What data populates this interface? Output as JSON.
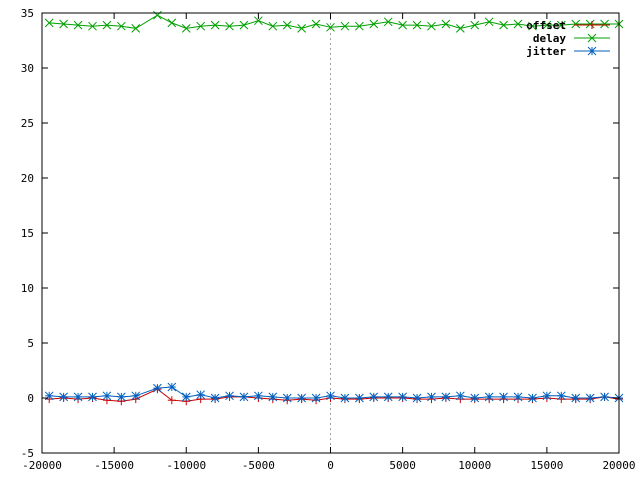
{
  "chart_data": {
    "type": "line",
    "title": "",
    "xlabel": "",
    "ylabel": "",
    "xlim": [
      -20000,
      20000
    ],
    "ylim": [
      -5,
      35
    ],
    "xticks": [
      -20000,
      -15000,
      -10000,
      -5000,
      0,
      5000,
      10000,
      15000,
      20000
    ],
    "yticks": [
      -5,
      0,
      5,
      10,
      15,
      20,
      25,
      30,
      35
    ],
    "x_tick_labels": [
      "-20000",
      "-15000",
      "-10000",
      "-5000",
      "0",
      "5000",
      "10000",
      "15000",
      "20000"
    ],
    "y_tick_labels": [
      "-5",
      "0",
      "5",
      "10",
      "15",
      "20",
      "25",
      "30",
      "35"
    ],
    "zero_line": "x = 0, dotted",
    "grid": false,
    "legend_position": "top-right",
    "series": [
      {
        "name": "offset",
        "color": "#cc0000",
        "marker": "plus",
        "x": [
          -19500,
          -18500,
          -17500,
          -16500,
          -15500,
          -14500,
          -13500,
          -12000,
          -11000,
          -10000,
          -9000,
          -8000,
          -7000,
          -6000,
          -5000,
          -4000,
          -3000,
          -2000,
          -1000,
          0,
          1000,
          2000,
          3000,
          4000,
          5000,
          6000,
          7000,
          8000,
          9000,
          10000,
          11000,
          12000,
          13000,
          14000,
          15000,
          16000,
          17000,
          18000,
          19000,
          20000
        ],
        "y": [
          -0.1,
          0.0,
          -0.1,
          0.0,
          -0.2,
          -0.3,
          -0.1,
          0.8,
          -0.2,
          -0.3,
          -0.1,
          -0.1,
          0.1,
          0.1,
          0.0,
          -0.1,
          -0.2,
          -0.1,
          -0.2,
          0.0,
          -0.1,
          -0.1,
          0.0,
          0.0,
          0.0,
          -0.1,
          -0.1,
          0.0,
          -0.1,
          -0.1,
          -0.1,
          -0.1,
          -0.1,
          -0.1,
          0.0,
          -0.1,
          -0.1,
          -0.1,
          0.1,
          -0.1
        ]
      },
      {
        "name": "delay",
        "color": "#00a000",
        "marker": "cross",
        "x": [
          -19500,
          -18500,
          -17500,
          -16500,
          -15500,
          -14500,
          -13500,
          -12000,
          -11000,
          -10000,
          -9000,
          -8000,
          -7000,
          -6000,
          -5000,
          -4000,
          -3000,
          -2000,
          -1000,
          0,
          1000,
          2000,
          3000,
          4000,
          5000,
          6000,
          7000,
          8000,
          9000,
          10000,
          11000,
          12000,
          13000,
          14000,
          15000,
          16000,
          17000,
          18000,
          19000,
          20000
        ],
        "y": [
          34.1,
          34.0,
          33.9,
          33.8,
          33.9,
          33.8,
          33.6,
          34.8,
          34.1,
          33.6,
          33.8,
          33.9,
          33.8,
          33.9,
          34.3,
          33.8,
          33.9,
          33.6,
          34.0,
          33.7,
          33.8,
          33.8,
          34.0,
          34.2,
          33.9,
          33.9,
          33.8,
          34.0,
          33.6,
          33.9,
          34.2,
          33.9,
          34.0,
          33.8,
          33.9,
          33.9,
          34.0,
          34.0,
          34.0,
          34.0
        ]
      },
      {
        "name": "jitter",
        "color": "#0060c0",
        "marker": "star",
        "x": [
          -19500,
          -18500,
          -17500,
          -16500,
          -15500,
          -14500,
          -13500,
          -12000,
          -11000,
          -10000,
          -9000,
          -8000,
          -7000,
          -6000,
          -5000,
          -4000,
          -3000,
          -2000,
          -1000,
          0,
          1000,
          2000,
          3000,
          4000,
          5000,
          6000,
          7000,
          8000,
          9000,
          10000,
          11000,
          12000,
          13000,
          14000,
          15000,
          16000,
          17000,
          18000,
          19000,
          20000
        ],
        "y": [
          0.2,
          0.1,
          0.1,
          0.1,
          0.2,
          0.1,
          0.2,
          0.9,
          1.0,
          0.1,
          0.3,
          0.0,
          0.2,
          0.1,
          0.2,
          0.1,
          0.0,
          0.0,
          0.0,
          0.2,
          0.0,
          0.0,
          0.1,
          0.1,
          0.1,
          0.0,
          0.1,
          0.1,
          0.2,
          0.0,
          0.1,
          0.1,
          0.1,
          0.0,
          0.2,
          0.2,
          0.0,
          0.0,
          0.1,
          0.0
        ]
      }
    ]
  }
}
